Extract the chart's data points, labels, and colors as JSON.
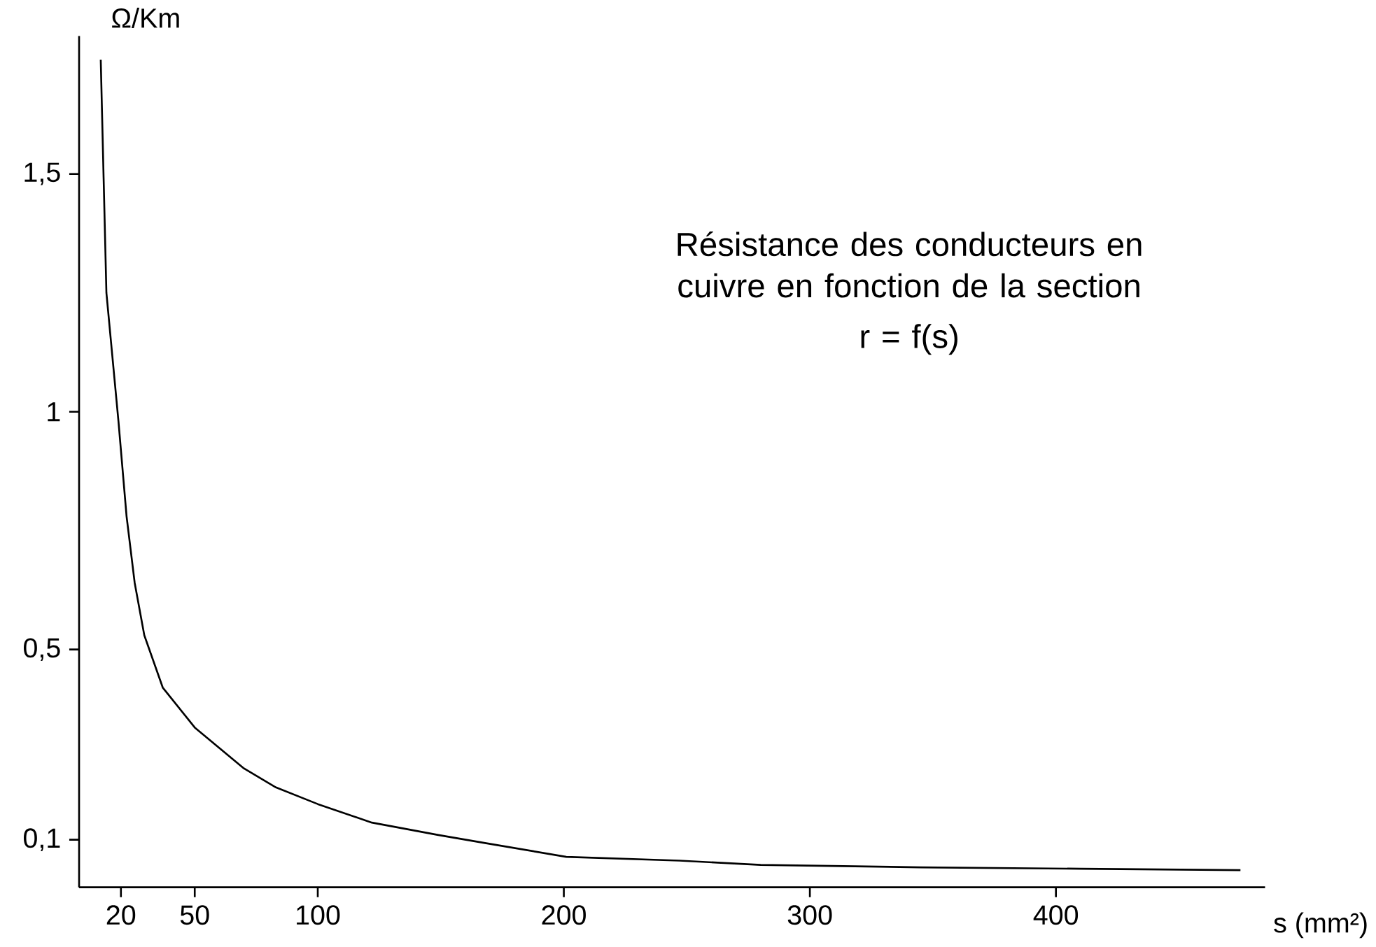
{
  "chart_data": {
    "type": "line",
    "title": "Résistance des conducteurs en cuivre en fonction de la section",
    "subtitle": "r = f(s)",
    "xlabel": "s (mm²)",
    "ylabel": "Ω/Km",
    "xlim": [
      3,
      485
    ],
    "ylim": [
      0,
      1.79
    ],
    "xticks": [
      20,
      50,
      100,
      200,
      300,
      400
    ],
    "yticks": [
      {
        "value": 0.1,
        "label": "0,1"
      },
      {
        "value": 0.5,
        "label": "0,5"
      },
      {
        "value": 1,
        "label": "1"
      },
      {
        "value": 1.5,
        "label": "1,5"
      }
    ],
    "x": [
      11.8,
      14.1,
      19,
      22.3,
      25.6,
      29.5,
      37,
      50,
      70,
      83,
      100,
      122,
      149,
      168,
      201,
      247,
      280,
      345,
      410,
      475
    ],
    "series": [
      {
        "color": "#000000",
        "values": [
          1.74,
          1.25,
          0.98,
          0.78,
          0.64,
          0.53,
          0.42,
          0.336,
          0.25,
          0.21,
          0.175,
          0.136,
          0.11,
          0.093,
          0.064,
          0.056,
          0.047,
          0.042,
          0.039,
          0.036
        ]
      }
    ],
    "grid": false,
    "marker": "none",
    "line_style": "solid"
  }
}
